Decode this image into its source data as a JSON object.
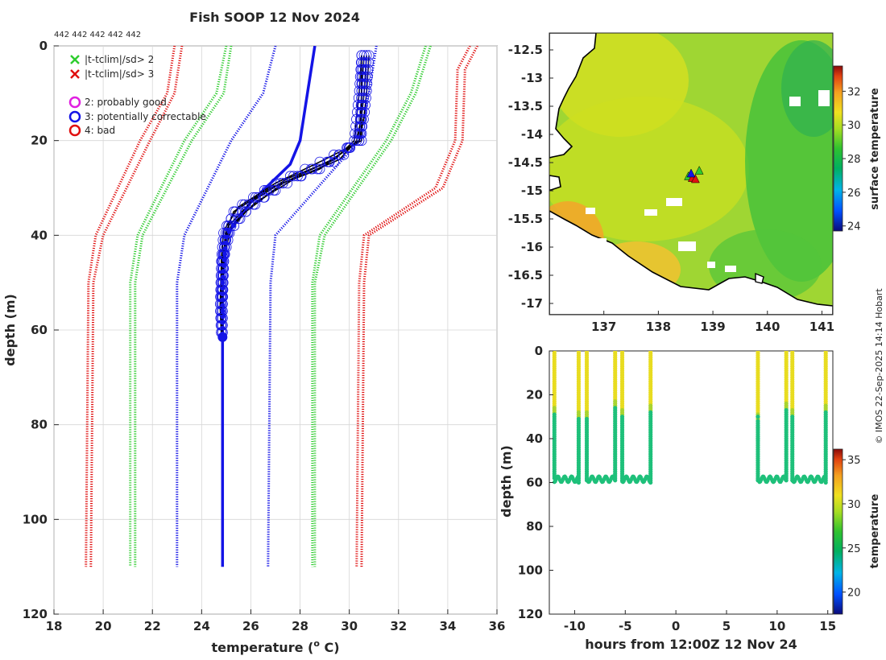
{
  "title": "Fish SOOP 12 Nov 2024",
  "profile_ids": "442 442 442 442 442",
  "credit": "© IMOS 22-Sep-2025 14:14 Hobart",
  "colors": {
    "green": "#2ecc2e",
    "red": "#e01010",
    "blue": "#1414e6",
    "magenta": "#e020e0",
    "black": "#000000"
  },
  "chart_data": [
    {
      "type": "line",
      "name": "temperature-profile",
      "xlabel": "temperature (",
      "xlabel_sup": "o",
      "xlabel_tail": " C)",
      "ylabel": "depth (m)",
      "xlim": [
        18,
        36
      ],
      "ylim": [
        0,
        120
      ],
      "y_reversed": true,
      "xticks": [
        18,
        20,
        22,
        24,
        26,
        28,
        30,
        32,
        34,
        36
      ],
      "yticks": [
        0,
        20,
        40,
        60,
        80,
        100,
        120
      ],
      "grid": true,
      "legend_location": "top-left",
      "legend": [
        {
          "marker": "x",
          "color": "#2ecc2e",
          "label": "|t-tclim|/sd> 2"
        },
        {
          "marker": "x",
          "color": "#e01010",
          "label": "|t-tclim|/sd> 3"
        },
        {
          "marker": "o",
          "color": "#e020e0",
          "label": "2: probably good"
        },
        {
          "marker": "o",
          "color": "#1414e6",
          "label": "3: potentially correctable"
        },
        {
          "marker": "o",
          "color": "#e01010",
          "label": "4: bad"
        }
      ],
      "series": [
        {
          "name": "clim -3sd a",
          "color": "#e01010",
          "style": "dotted",
          "x": [
            22.9,
            22.6,
            21.5,
            19.7,
            19.4,
            19.3
          ],
          "depth": [
            0,
            10,
            20,
            40,
            50,
            110
          ]
        },
        {
          "name": "clim -3sd b",
          "color": "#e01010",
          "style": "dotted",
          "x": [
            23.2,
            22.9,
            21.9,
            20.0,
            19.6,
            19.5
          ],
          "depth": [
            0,
            10,
            20,
            40,
            50,
            110
          ]
        },
        {
          "name": "clim -2sd a",
          "color": "#2ecc2e",
          "style": "dotted",
          "x": [
            25.0,
            24.6,
            23.3,
            21.4,
            21.1,
            21.1
          ],
          "depth": [
            0,
            10,
            20,
            40,
            50,
            110
          ]
        },
        {
          "name": "clim -2sd b",
          "color": "#2ecc2e",
          "style": "dotted",
          "x": [
            25.2,
            24.9,
            23.6,
            21.6,
            21.3,
            21.3
          ],
          "depth": [
            0,
            10,
            20,
            40,
            50,
            110
          ]
        },
        {
          "name": "clim -1sd",
          "color": "#1414e6",
          "style": "dotted",
          "x": [
            27.0,
            26.5,
            25.2,
            23.3,
            23.0,
            23.0
          ],
          "depth": [
            0,
            10,
            20,
            40,
            50,
            110
          ]
        },
        {
          "name": "clim +1sd",
          "color": "#1414e6",
          "style": "dotted",
          "x": [
            31.1,
            30.8,
            30.4,
            27.0,
            26.8,
            26.7
          ],
          "depth": [
            0,
            10,
            20,
            40,
            50,
            110
          ]
        },
        {
          "name": "clim +2sd a",
          "color": "#2ecc2e",
          "style": "dotted",
          "x": [
            33.1,
            32.5,
            31.5,
            28.8,
            28.5,
            28.5
          ],
          "depth": [
            0,
            10,
            20,
            40,
            50,
            110
          ]
        },
        {
          "name": "clim +2sd b",
          "color": "#2ecc2e",
          "style": "dotted",
          "x": [
            33.3,
            32.7,
            31.7,
            29.0,
            28.6,
            28.6
          ],
          "depth": [
            0,
            10,
            20,
            40,
            50,
            110
          ]
        },
        {
          "name": "clim +3sd a",
          "color": "#e01010",
          "style": "dotted",
          "x": [
            34.9,
            34.4,
            34.3,
            33.5,
            30.6,
            30.4,
            30.3
          ],
          "depth": [
            0,
            5,
            20,
            30,
            40,
            50,
            110
          ]
        },
        {
          "name": "clim +3sd b",
          "color": "#e01010",
          "style": "dotted",
          "x": [
            35.2,
            34.7,
            34.6,
            33.8,
            30.8,
            30.6,
            30.5
          ],
          "depth": [
            0,
            5,
            20,
            30,
            40,
            50,
            110
          ]
        },
        {
          "name": "mean profile",
          "color": "#1414e6",
          "style": "solid",
          "x": [
            28.6,
            28.3,
            28.0,
            27.6,
            26.0,
            25.0,
            24.85,
            24.85,
            24.85
          ],
          "depth": [
            0,
            10,
            20,
            25,
            33,
            40,
            50,
            60,
            110
          ]
        },
        {
          "name": "profile 1",
          "color": "#000000",
          "style": "solid",
          "x": [
            30.5,
            30.4,
            30.3,
            30.2,
            29.4,
            27.5,
            26.0,
            25.1,
            24.85,
            24.85,
            24.85
          ],
          "depth": [
            2,
            10,
            15,
            20,
            24,
            28,
            33,
            38,
            45,
            55,
            61
          ]
        },
        {
          "name": "profile 2",
          "color": "#000000",
          "style": "solid",
          "x": [
            30.7,
            30.6,
            30.5,
            30.5,
            29.0,
            27.0,
            25.5,
            24.9,
            24.8,
            24.8,
            24.8
          ],
          "depth": [
            2,
            10,
            15,
            20,
            24,
            29,
            34,
            39,
            45,
            55,
            61
          ]
        },
        {
          "name": "profile 3",
          "color": "#000000",
          "style": "solid",
          "x": [
            30.6,
            30.5,
            30.45,
            30.4,
            29.3,
            27.3,
            25.8,
            25.0,
            24.8,
            24.75,
            24.8
          ],
          "depth": [
            2,
            10,
            15,
            20,
            24,
            29,
            35,
            40,
            46,
            55,
            61
          ]
        },
        {
          "name": "profile 4",
          "color": "#000000",
          "style": "solid",
          "x": [
            30.8,
            30.7,
            30.6,
            30.4,
            28.8,
            26.8,
            25.3,
            24.95,
            24.9,
            24.85,
            24.85
          ],
          "depth": [
            2,
            10,
            15,
            20,
            26,
            30,
            35,
            40,
            46,
            55,
            61
          ]
        },
        {
          "name": "profile 5",
          "color": "#000000",
          "style": "solid",
          "x": [
            30.5,
            30.5,
            30.5,
            30.3,
            29.6,
            27.8,
            26.2,
            25.2,
            24.9,
            24.8,
            24.8
          ],
          "depth": [
            2,
            10,
            15,
            20,
            24,
            28,
            33,
            38,
            45,
            55,
            61
          ]
        }
      ]
    },
    {
      "type": "heatmap",
      "name": "sst-map",
      "colorbar_label": "surface temperature",
      "xlim": [
        136.0,
        141.2
      ],
      "ylim": [
        -17.2,
        -12.2
      ],
      "xticks": [
        137,
        138,
        139,
        140,
        141
      ],
      "yticks": [
        -12.5,
        -13,
        -13.5,
        -14,
        -14.5,
        -15,
        -15.5,
        -16,
        -16.5,
        -17
      ],
      "cbar_range": [
        23.7,
        33.5
      ],
      "cbar_ticks": [
        24,
        26,
        28,
        30,
        32
      ],
      "stations": [
        {
          "lon": 138.55,
          "lat": -14.75,
          "color": "#2ecc2e"
        },
        {
          "lon": 138.75,
          "lat": -14.65,
          "color": "#2ecc2e"
        },
        {
          "lon": 138.62,
          "lat": -14.78,
          "color": "#e01010"
        },
        {
          "lon": 138.68,
          "lat": -14.8,
          "color": "#e01010"
        },
        {
          "lon": 138.6,
          "lat": -14.7,
          "color": "#1414e6"
        }
      ]
    },
    {
      "type": "scatter",
      "name": "depth-time",
      "xlabel": "hours from 12:00Z 12 Nov 24",
      "ylabel": "depth (m)",
      "colorbar_label": "temperature",
      "xlim": [
        -12.5,
        15.5
      ],
      "ylim": [
        0,
        120
      ],
      "y_reversed": true,
      "xticks": [
        -10,
        -5,
        0,
        5,
        10,
        15
      ],
      "yticks": [
        0,
        20,
        40,
        60,
        80,
        100,
        120
      ],
      "cbar_range": [
        17.5,
        36.2
      ],
      "cbar_ticks": [
        20,
        25,
        30,
        35
      ],
      "casts": [
        {
          "t_start": -12.0,
          "t_end": -12.0,
          "max_depth": 58,
          "warm_to": 27
        },
        {
          "t_start": -9.6,
          "t_end": -9.6,
          "max_depth": 60,
          "warm_to": 29
        },
        {
          "t_start": -8.8,
          "t_end": -8.8,
          "max_depth": 59,
          "warm_to": 29
        },
        {
          "t_start": -6.0,
          "t_end": -6.0,
          "max_depth": 59,
          "warm_to": 24
        },
        {
          "t_start": -5.3,
          "t_end": -5.3,
          "max_depth": 59,
          "warm_to": 28
        },
        {
          "t_start": -2.5,
          "t_end": -2.5,
          "max_depth": 60,
          "warm_to": 26
        },
        {
          "t_start": 8.1,
          "t_end": 8.1,
          "max_depth": 59,
          "warm_to": 30
        },
        {
          "t_start": 10.9,
          "t_end": 10.9,
          "max_depth": 59,
          "warm_to": 25
        },
        {
          "t_start": 11.5,
          "t_end": 11.5,
          "max_depth": 59,
          "warm_to": 28
        },
        {
          "t_start": 14.8,
          "t_end": 14.8,
          "max_depth": 60,
          "warm_to": 26
        }
      ],
      "bottom_segments": [
        {
          "from": -12.0,
          "to": -9.6
        },
        {
          "from": -8.8,
          "to": -6.0
        },
        {
          "from": -5.3,
          "to": -2.5
        },
        {
          "from": 8.1,
          "to": 10.9
        },
        {
          "from": 11.5,
          "to": 14.8
        }
      ],
      "isolated_points": [
        {
          "t": 8.1,
          "depth": 30
        },
        {
          "t": 8.1,
          "depth": 35
        },
        {
          "t": 8.1,
          "depth": 40
        }
      ]
    }
  ]
}
